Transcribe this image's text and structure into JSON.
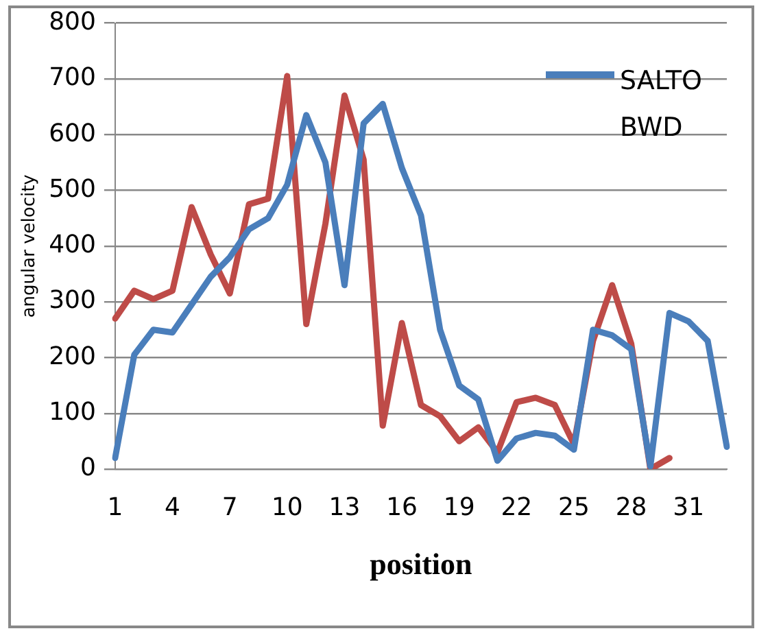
{
  "chart_data": {
    "type": "line",
    "xlabel": "position",
    "ylabel": "angular velocity",
    "categories": [
      "1",
      null,
      null,
      "4",
      null,
      null,
      "7",
      null,
      null,
      "10",
      null,
      null,
      "13",
      null,
      null,
      "16",
      null,
      null,
      "19",
      null,
      null,
      "22",
      null,
      null,
      "25",
      null,
      null,
      "28",
      null,
      null,
      "31",
      null,
      null
    ],
    "series": [
      {
        "name": "SALTO BWD",
        "color": "#4a7ebb",
        "values": [
          20,
          205,
          250,
          245,
          295,
          345,
          380,
          430,
          450,
          510,
          635,
          550,
          330,
          620,
          655,
          540,
          455,
          250,
          150,
          125,
          15,
          55,
          65,
          60,
          35,
          250,
          240,
          215,
          5,
          280,
          265,
          230,
          40
        ]
      },
      {
        "color": "#be4b48",
        "values": [
          270,
          320,
          305,
          320,
          470,
          385,
          315,
          475,
          485,
          705,
          260,
          440,
          670,
          555,
          78,
          262,
          115,
          95,
          50,
          75,
          30,
          120,
          128,
          115,
          45,
          230,
          330,
          225,
          0,
          20,
          null,
          null,
          null
        ]
      }
    ],
    "ylim": [
      0,
      800
    ],
    "yticks": [
      0,
      100,
      200,
      300,
      400,
      500,
      600,
      700,
      800
    ],
    "grid": "y",
    "legend": "top right",
    "marker": "none",
    "line_style": "solid"
  }
}
